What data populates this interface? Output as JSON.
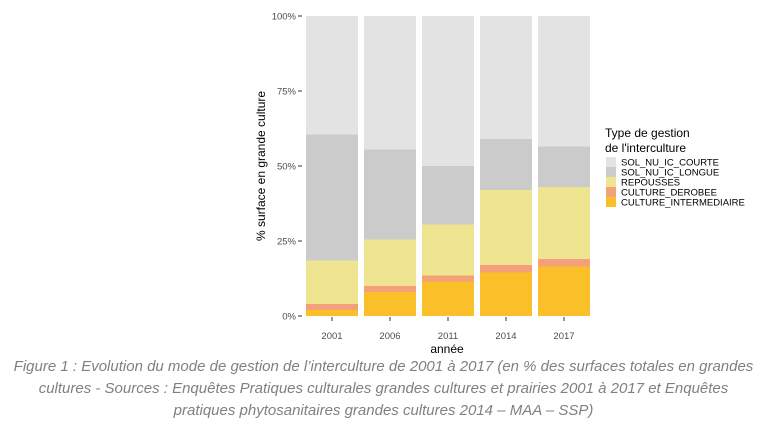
{
  "chart_data": {
    "type": "bar",
    "stacked": true,
    "categories": [
      "2001",
      "2006",
      "2011",
      "2014",
      "2017"
    ],
    "xlabel": "année",
    "ylabel": "% surface en grande culture",
    "ylim": [
      0,
      100
    ],
    "yticks": [
      "0%",
      "25%",
      "50%",
      "75%",
      "100%"
    ],
    "legend": {
      "title_line1": "Type de gestion",
      "title_line2": "de l'interculture",
      "placement": "right"
    },
    "series": [
      {
        "name": "SOL_NU_IC_COURTE",
        "color": "#e3e3e3",
        "values": [
          39.5,
          44.5,
          50,
          41,
          43.5
        ]
      },
      {
        "name": "SOL_NU_IC_LONGUE",
        "color": "#cbcbcb",
        "values": [
          42,
          30,
          19.5,
          17,
          13.5
        ]
      },
      {
        "name": "REPOUSSES",
        "color": "#efe590",
        "values": [
          14.5,
          15.5,
          17,
          25,
          24
        ]
      },
      {
        "name": "CULTURE_DEROBEE",
        "color": "#f4a07a",
        "values": [
          2,
          2,
          2,
          2.5,
          2.5
        ]
      },
      {
        "name": "CULTURE_INTERMEDIAIRE",
        "color": "#fbbf2a",
        "values": [
          2,
          8,
          11.5,
          14.5,
          16.5
        ]
      }
    ]
  },
  "caption": "Figure 1 : Evolution du mode de gestion de l’interculture de 2001 à 2017 (en % des surfaces totales en grandes cultures - Sources : Enquêtes Pratiques culturales grandes cultures et prairies 2001 à 2017 et Enquêtes pratiques phytosanitaires grandes cultures 2014 – MAA – SSP)"
}
